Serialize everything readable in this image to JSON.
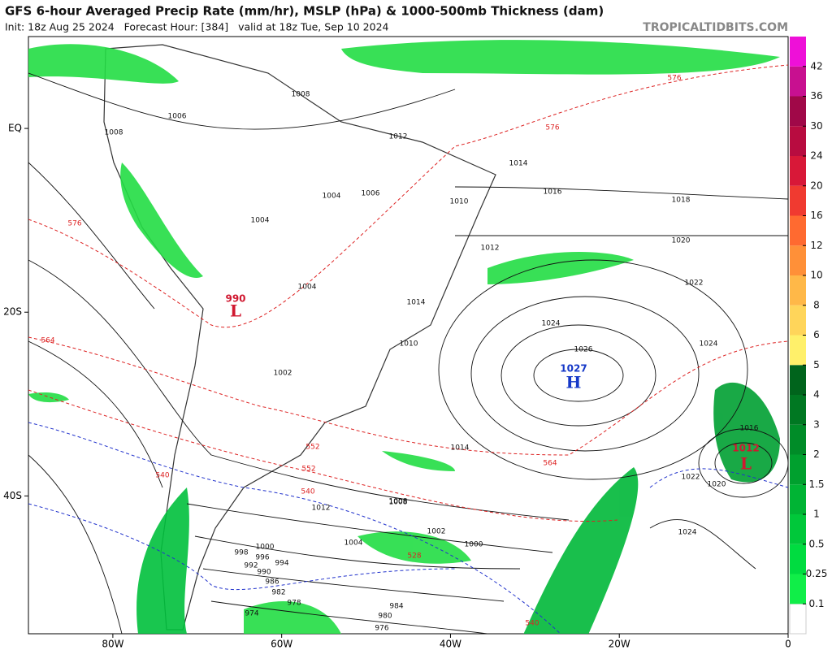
{
  "header": {
    "title": "GFS 6-hour Averaged Precip Rate (mm/hr), MSLP (hPa) & 1000-500mb Thickness (dam)",
    "subtitle": "Init: 18z Aug 25 2024   Forecast Hour: [384]   valid at 18z Tue, Sep 10 2024",
    "source": "TROPICALTIDBITS.COM"
  },
  "map": {
    "xlim": [
      -90,
      0
    ],
    "ylim": [
      -55,
      10
    ],
    "xticks": [
      {
        "value": -80,
        "label": "80W"
      },
      {
        "value": -60,
        "label": "60W"
      },
      {
        "value": -40,
        "label": "40W"
      },
      {
        "value": -20,
        "label": "20W"
      },
      0
    ],
    "yticks": [
      {
        "value": 0,
        "label": "EQ"
      },
      {
        "value": -20,
        "label": "20S"
      },
      {
        "value": -40,
        "label": "40S"
      }
    ]
  },
  "colorbar": {
    "ticks": [
      0.1,
      0.25,
      0.5,
      1,
      1.5,
      2,
      3,
      4,
      5,
      6,
      8,
      10,
      12,
      16,
      20,
      24,
      30,
      36,
      42
    ],
    "colors": [
      "#10ee48",
      "#00dc40",
      "#00c83a",
      "#00b434",
      "#00a02e",
      "#008c28",
      "#007822",
      "#00641c",
      "#fff06a",
      "#ffd55a",
      "#ffb848",
      "#ff9038",
      "#ff6a30",
      "#f03a30",
      "#d81838",
      "#b80c40",
      "#a00848",
      "#c81090",
      "#ee10d8"
    ]
  },
  "pressure_centers": [
    {
      "letter": "H",
      "value": "1027"
    },
    {
      "letter": "L",
      "value": "1012"
    },
    {
      "letter": "L",
      "value": "990"
    }
  ],
  "isobar_labels": [
    "1008",
    "1006",
    "1008",
    "1012",
    "1014",
    "1016",
    "1018",
    "1020",
    "1022",
    "1024",
    "1026",
    "1024",
    "1016",
    "1022",
    "1020",
    "1024",
    "1004",
    "1004",
    "1006",
    "1010",
    "1012",
    "1004",
    "1002",
    "1014",
    "1010",
    "1008",
    "1004",
    "1000",
    "998",
    "996",
    "994",
    "992",
    "990",
    "986",
    "982",
    "978",
    "974",
    "984",
    "980",
    "976",
    "1000",
    "1002",
    "1008",
    "1012",
    "1014"
  ],
  "thickness_labels": [
    "576",
    "576",
    "576",
    "564",
    "564",
    "552",
    "552",
    "540",
    "540",
    "528",
    "540"
  ]
}
